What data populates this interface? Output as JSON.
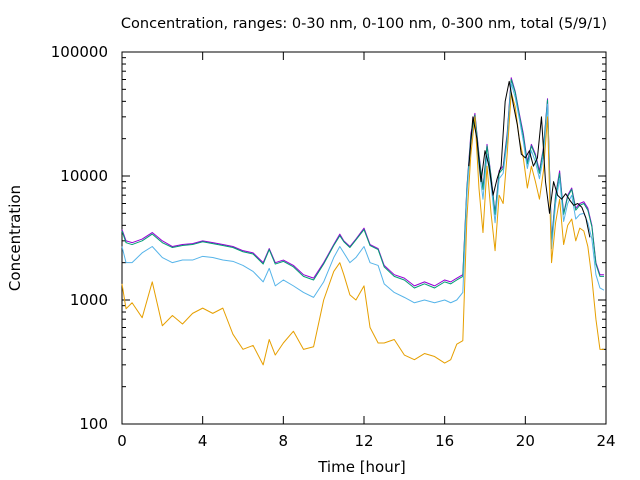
{
  "chart_data": {
    "type": "line",
    "title": "Concentration, ranges: 0-30 nm, 0-100 nm, 0-300 nm, total (5/9/1)",
    "xlabel": "Time [hour]",
    "ylabel": "Concentration",
    "xlim": [
      0,
      24
    ],
    "ylim": [
      100,
      100000
    ],
    "yscale": "log",
    "xticks": [
      0,
      4,
      8,
      12,
      16,
      20,
      24
    ],
    "xtick_labels": [
      "0",
      "4",
      "8",
      "12",
      "16",
      "20",
      "24"
    ],
    "yticks": [
      100,
      1000,
      10000,
      100000
    ],
    "ytick_labels": [
      "100",
      "1000",
      "10000",
      "100000"
    ],
    "grid": false,
    "legend": "none",
    "series": [
      {
        "color": "#9400d3",
        "x": [
          0,
          0.2,
          0.5,
          1,
          1.5,
          2,
          2.5,
          3,
          3.5,
          4,
          4.5,
          5,
          5.5,
          6,
          6.5,
          7,
          7.3,
          7.6,
          8,
          8.5,
          9,
          9.5,
          10,
          10.5,
          10.8,
          11,
          11.3,
          11.6,
          12,
          12.3,
          12.7,
          13,
          13.5,
          14,
          14.5,
          15,
          15.5,
          16,
          16.3,
          16.6,
          16.9,
          17.1,
          17.3,
          17.5,
          17.7,
          17.9,
          18.1,
          18.3,
          18.5,
          18.7,
          18.9,
          19.1,
          19.3,
          19.5,
          19.7,
          19.9,
          20.1,
          20.3,
          20.5,
          20.7,
          20.9,
          21.1,
          21.3,
          21.5,
          21.7,
          21.9,
          22.1,
          22.3,
          22.5,
          22.7,
          22.9,
          23.1,
          23.3,
          23.5,
          23.7,
          23.9
        ],
        "y": [
          3700,
          3000,
          2900,
          3100,
          3500,
          3000,
          2700,
          2800,
          2850,
          3000,
          2900,
          2800,
          2700,
          2500,
          2400,
          2000,
          2600,
          2000,
          2100,
          1900,
          1600,
          1500,
          2000,
          2800,
          3400,
          3000,
          2700,
          3100,
          3800,
          2800,
          2600,
          1900,
          1600,
          1500,
          1300,
          1400,
          1300,
          1450,
          1400,
          1500,
          1600,
          8000,
          22000,
          32000,
          15000,
          8000,
          18000,
          10000,
          5000,
          11000,
          12000,
          22000,
          62000,
          48000,
          32000,
          22000,
          13000,
          18000,
          15000,
          11000,
          17000,
          42000,
          3000,
          7000,
          11000,
          5000,
          7000,
          8000,
          5500,
          6000,
          6200,
          5500,
          4000,
          2000,
          1600,
          1600
        ]
      },
      {
        "color": "#009e73",
        "x": [
          0,
          0.2,
          0.5,
          1,
          1.5,
          2,
          2.5,
          3,
          3.5,
          4,
          4.5,
          5,
          5.5,
          6,
          6.5,
          7,
          7.3,
          7.6,
          8,
          8.5,
          9,
          9.5,
          10,
          10.5,
          10.8,
          11,
          11.3,
          11.6,
          12,
          12.3,
          12.7,
          13,
          13.5,
          14,
          14.5,
          15,
          15.5,
          16,
          16.3,
          16.6,
          16.9,
          17.1,
          17.3,
          17.5,
          17.7,
          17.9,
          18.1,
          18.3,
          18.5,
          18.7,
          18.9,
          19.1,
          19.3,
          19.5,
          19.7,
          19.9,
          20.1,
          20.3,
          20.5,
          20.7,
          20.9,
          21.1,
          21.3,
          21.5,
          21.7,
          21.9,
          22.1,
          22.3,
          22.5,
          22.7,
          22.9,
          23.1,
          23.3,
          23.5,
          23.7,
          23.9
        ],
        "y": [
          3600,
          2900,
          2800,
          3000,
          3400,
          2900,
          2650,
          2750,
          2800,
          2950,
          2850,
          2750,
          2650,
          2450,
          2350,
          1950,
          2550,
          1950,
          2050,
          1850,
          1550,
          1450,
          1950,
          2750,
          3300,
          2950,
          2650,
          3050,
          3700,
          2750,
          2550,
          1850,
          1550,
          1450,
          1250,
          1350,
          1250,
          1400,
          1350,
          1450,
          1550,
          7800,
          21000,
          31000,
          14500,
          7800,
          17500,
          9800,
          4900,
          10500,
          11500,
          21000,
          60000,
          47000,
          31000,
          21000,
          12500,
          17500,
          14500,
          10500,
          16500,
          41000,
          2900,
          6800,
          10500,
          4900,
          6800,
          7800,
          5300,
          5800,
          6000,
          5300,
          3900,
          1950,
          1550,
          1550
        ]
      },
      {
        "color": "#56b4e9",
        "x": [
          0,
          0.2,
          0.5,
          1,
          1.5,
          2,
          2.5,
          3,
          3.5,
          4,
          4.5,
          5,
          5.5,
          6,
          6.5,
          7,
          7.3,
          7.6,
          8,
          8.5,
          9,
          9.5,
          10,
          10.5,
          10.8,
          11,
          11.3,
          11.6,
          12,
          12.3,
          12.7,
          13,
          13.5,
          14,
          14.5,
          15,
          15.5,
          16,
          16.3,
          16.6,
          16.9,
          17.1,
          17.3,
          17.5,
          17.7,
          17.9,
          18.1,
          18.3,
          18.5,
          18.7,
          18.9,
          19.1,
          19.3,
          19.5,
          19.7,
          19.9,
          20.1,
          20.3,
          20.5,
          20.7,
          20.9,
          21.1,
          21.3,
          21.5,
          21.7,
          21.9,
          22.1,
          22.3,
          22.5,
          22.7,
          22.9,
          23.1,
          23.3,
          23.5,
          23.7,
          23.9
        ],
        "y": [
          2700,
          2000,
          2000,
          2400,
          2700,
          2200,
          2000,
          2100,
          2100,
          2250,
          2200,
          2100,
          2050,
          1900,
          1700,
          1400,
          1800,
          1300,
          1450,
          1300,
          1150,
          1050,
          1400,
          2200,
          2700,
          2400,
          2000,
          2200,
          2700,
          2000,
          1900,
          1350,
          1150,
          1050,
          950,
          1000,
          950,
          1000,
          950,
          1000,
          1150,
          7000,
          19000,
          29000,
          12000,
          6500,
          15000,
          8500,
          4200,
          9500,
          10500,
          19000,
          56000,
          43000,
          29000,
          19000,
          11500,
          16000,
          13000,
          9500,
          14500,
          38000,
          2600,
          6000,
          9500,
          4300,
          6000,
          7000,
          4500,
          4900,
          5000,
          4200,
          3100,
          1600,
          1250,
          1200
        ]
      },
      {
        "color": "#e69f00",
        "x": [
          0,
          0.2,
          0.5,
          1,
          1.5,
          2,
          2.5,
          3,
          3.5,
          4,
          4.5,
          5,
          5.5,
          6,
          6.5,
          7,
          7.3,
          7.6,
          8,
          8.5,
          9,
          9.5,
          10,
          10.5,
          10.8,
          11,
          11.3,
          11.6,
          12,
          12.3,
          12.7,
          13,
          13.5,
          14,
          14.5,
          15,
          15.5,
          16,
          16.3,
          16.6,
          16.9,
          17.1,
          17.3,
          17.5,
          17.7,
          17.9,
          18.1,
          18.3,
          18.5,
          18.7,
          18.9,
          19.1,
          19.3,
          19.5,
          19.7,
          19.9,
          20.1,
          20.3,
          20.5,
          20.7,
          20.9,
          21.1,
          21.3,
          21.5,
          21.7,
          21.9,
          22.1,
          22.3,
          22.5,
          22.7,
          22.9,
          23.1,
          23.3,
          23.5,
          23.7,
          23.9
        ],
        "y": [
          1350,
          850,
          950,
          720,
          1400,
          620,
          750,
          640,
          780,
          860,
          780,
          860,
          530,
          400,
          430,
          300,
          480,
          360,
          450,
          560,
          400,
          420,
          1000,
          1700,
          2000,
          1600,
          1100,
          1000,
          1300,
          600,
          450,
          450,
          480,
          360,
          330,
          370,
          350,
          310,
          330,
          440,
          470,
          4500,
          15000,
          30000,
          8000,
          3500,
          12000,
          5000,
          2500,
          7000,
          6000,
          15000,
          47000,
          36000,
          20000,
          14000,
          8000,
          12000,
          9000,
          6500,
          11000,
          30000,
          2000,
          4200,
          6500,
          2800,
          4000,
          4500,
          3000,
          3800,
          3600,
          2700,
          1500,
          700,
          400,
          400
        ]
      },
      {
        "color": "#000000",
        "x": [
          17.2,
          17.4,
          17.6,
          17.8,
          18.0,
          18.2,
          18.4,
          18.6,
          18.8,
          19.0,
          19.2,
          19.4,
          19.6,
          19.8,
          20.0,
          20.2,
          20.4,
          20.6,
          20.8,
          21.0,
          21.2,
          21.4,
          21.6,
          21.8,
          22.0,
          22.2,
          22.4,
          22.6,
          22.8,
          23.0,
          23.2
        ],
        "y": [
          12000,
          30000,
          20000,
          9000,
          16000,
          12000,
          7000,
          9500,
          12000,
          40000,
          58000,
          38000,
          26000,
          15000,
          14000,
          16000,
          12000,
          14000,
          30000,
          9000,
          5000,
          9000,
          7000,
          6500,
          7200,
          6400,
          5800,
          6000,
          5600,
          4600,
          3200
        ]
      }
    ]
  }
}
